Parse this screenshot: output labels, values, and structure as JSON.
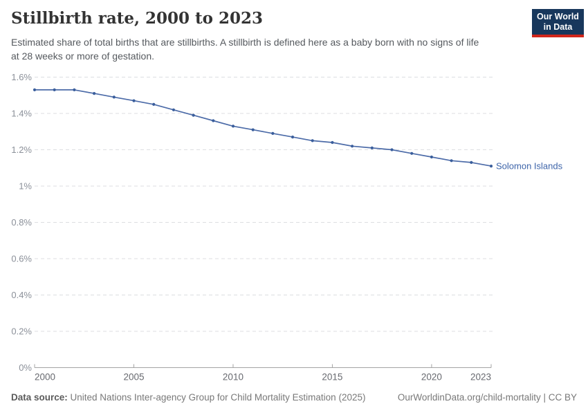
{
  "header": {
    "title": "Stillbirth rate, 2000 to 2023",
    "subtitle_line1": "Estimated share of total births that are stillbirths. A stillbirth is defined here as a baby born with no signs of life",
    "subtitle_line2": "at 28 weeks or more of gestation."
  },
  "logo": {
    "line1": "Our World",
    "line2": "in Data",
    "bg_color": "#18375c",
    "accent_color": "#d1261b"
  },
  "chart_data": {
    "type": "line",
    "title": "Stillbirth rate, 2000 to 2023",
    "entity": "Solomon Islands",
    "x": [
      2000,
      2001,
      2002,
      2003,
      2004,
      2005,
      2006,
      2007,
      2008,
      2009,
      2010,
      2011,
      2012,
      2013,
      2014,
      2015,
      2016,
      2017,
      2018,
      2019,
      2020,
      2021,
      2022,
      2023
    ],
    "values": [
      1.53,
      1.53,
      1.53,
      1.51,
      1.49,
      1.47,
      1.45,
      1.42,
      1.39,
      1.36,
      1.33,
      1.31,
      1.29,
      1.27,
      1.25,
      1.24,
      1.22,
      1.21,
      1.2,
      1.18,
      1.16,
      1.14,
      1.13,
      1.11
    ],
    "unit": "%",
    "xlim": [
      2000,
      2023
    ],
    "ylim": [
      0,
      1.6
    ],
    "yticks": [
      0,
      0.2,
      0.4,
      0.6,
      0.8,
      1.0,
      1.2,
      1.4,
      1.6
    ],
    "ytick_labels": [
      "0%",
      "0.2%",
      "0.4%",
      "0.6%",
      "0.8%",
      "1%",
      "1.2%",
      "1.4%",
      "1.6%"
    ],
    "xticks": [
      2000,
      2005,
      2010,
      2015,
      2020,
      2023
    ],
    "xtick_labels": [
      "2000",
      "2005",
      "2010",
      "2015",
      "2020",
      "2023"
    ],
    "grid": "horizontal-dashed",
    "legend_position": "end-of-line-label",
    "line_color": "#4c6ba8",
    "marker_color": "#3a5e9c",
    "entity_label_color": "#3d64a9"
  },
  "footer": {
    "source_label": "Data source:",
    "source_text": " United Nations Inter-agency Group for Child Mortality Estimation (2025)",
    "link_text": "OurWorldinData.org/child-mortality | CC BY"
  }
}
